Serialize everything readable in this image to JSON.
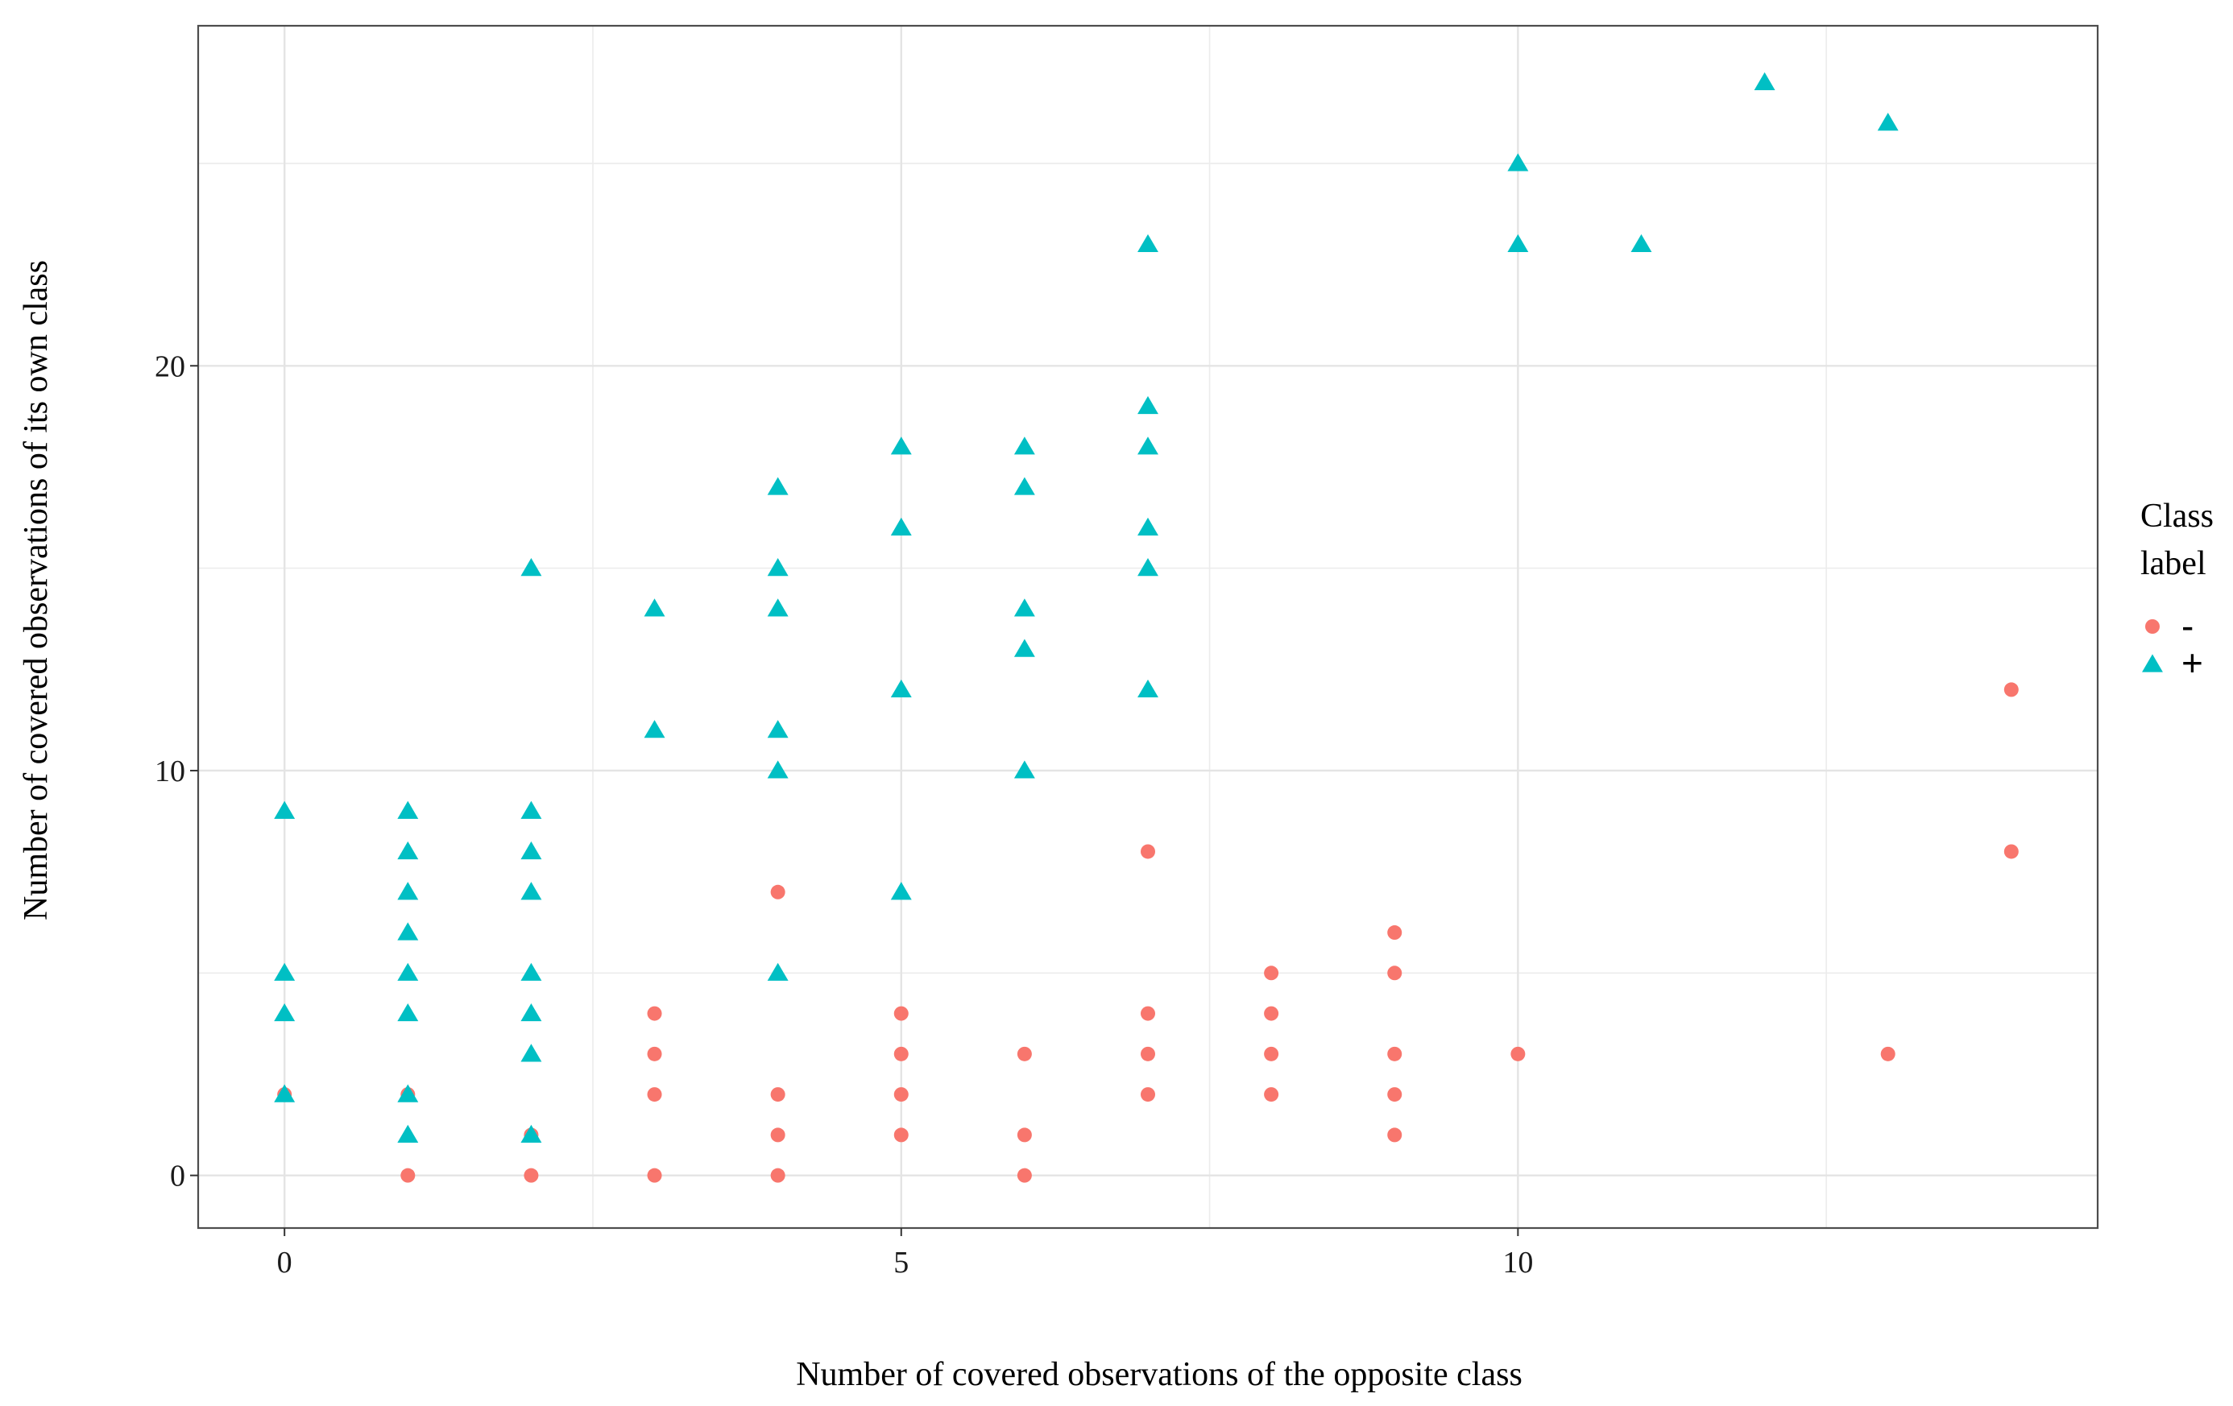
{
  "chart_data": {
    "type": "scatter",
    "title": "",
    "xlabel": "Number of covered observations of the opposite class",
    "ylabel": "Number of covered observations of its own class",
    "xlim": [
      -0.7,
      14.7
    ],
    "ylim": [
      -1.3,
      28.4
    ],
    "x_ticks": [
      0,
      5,
      10
    ],
    "y_ticks": [
      0,
      10,
      20
    ],
    "x_tick_labels": [
      "0",
      "5",
      "10"
    ],
    "y_tick_labels": [
      "0",
      "10",
      "20"
    ],
    "grid": true,
    "legend": {
      "title_line1": "Class",
      "title_line2": "label",
      "position": "right"
    },
    "series": [
      {
        "name": "-",
        "marker": "circle",
        "color": "#F8766D",
        "points": [
          [
            0,
            2
          ],
          [
            1,
            0
          ],
          [
            1,
            2
          ],
          [
            2,
            0
          ],
          [
            2,
            1
          ],
          [
            3,
            0
          ],
          [
            3,
            2
          ],
          [
            3,
            3
          ],
          [
            3,
            4
          ],
          [
            4,
            0
          ],
          [
            4,
            1
          ],
          [
            4,
            2
          ],
          [
            4,
            7
          ],
          [
            5,
            1
          ],
          [
            5,
            2
          ],
          [
            5,
            3
          ],
          [
            5,
            4
          ],
          [
            6,
            0
          ],
          [
            6,
            1
          ],
          [
            6,
            3
          ],
          [
            7,
            2
          ],
          [
            7,
            3
          ],
          [
            7,
            4
          ],
          [
            7,
            8
          ],
          [
            8,
            2
          ],
          [
            8,
            3
          ],
          [
            8,
            4
          ],
          [
            8,
            5
          ],
          [
            9,
            1
          ],
          [
            9,
            2
          ],
          [
            9,
            3
          ],
          [
            9,
            5
          ],
          [
            9,
            6
          ],
          [
            10,
            3
          ],
          [
            13,
            3
          ],
          [
            14,
            8
          ],
          [
            14,
            12
          ]
        ]
      },
      {
        "name": "+",
        "marker": "triangle",
        "color": "#00BFC4",
        "points": [
          [
            0,
            2
          ],
          [
            0,
            4
          ],
          [
            0,
            5
          ],
          [
            0,
            9
          ],
          [
            1,
            1
          ],
          [
            1,
            2
          ],
          [
            1,
            4
          ],
          [
            1,
            5
          ],
          [
            1,
            6
          ],
          [
            1,
            7
          ],
          [
            1,
            8
          ],
          [
            1,
            9
          ],
          [
            2,
            1
          ],
          [
            2,
            3
          ],
          [
            2,
            4
          ],
          [
            2,
            5
          ],
          [
            2,
            7
          ],
          [
            2,
            8
          ],
          [
            2,
            9
          ],
          [
            2,
            15
          ],
          [
            3,
            11
          ],
          [
            3,
            14
          ],
          [
            4,
            5
          ],
          [
            4,
            10
          ],
          [
            4,
            11
          ],
          [
            4,
            14
          ],
          [
            4,
            15
          ],
          [
            4,
            17
          ],
          [
            5,
            7
          ],
          [
            5,
            12
          ],
          [
            5,
            16
          ],
          [
            5,
            18
          ],
          [
            6,
            10
          ],
          [
            6,
            13
          ],
          [
            6,
            14
          ],
          [
            6,
            17
          ],
          [
            6,
            18
          ],
          [
            7,
            12
          ],
          [
            7,
            15
          ],
          [
            7,
            16
          ],
          [
            7,
            18
          ],
          [
            7,
            19
          ],
          [
            7,
            23
          ],
          [
            10,
            23
          ],
          [
            10,
            25
          ],
          [
            11,
            23
          ],
          [
            12,
            27
          ],
          [
            13,
            26
          ]
        ]
      }
    ]
  }
}
